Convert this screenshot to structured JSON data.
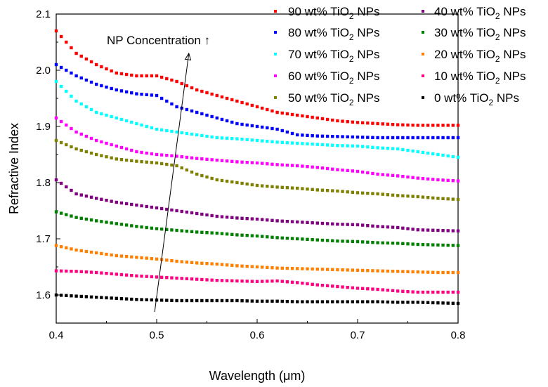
{
  "chart_data": {
    "type": "scatter",
    "xlabel": "Wavelength (μm)",
    "ylabel": "Refractive Index",
    "xlim": [
      0.4,
      0.8
    ],
    "ylim": [
      1.55,
      2.1
    ],
    "xticks": [
      "0.4",
      "0.5",
      "0.6",
      "0.7",
      "0.8"
    ],
    "yticks": [
      "1.6",
      "1.7",
      "1.8",
      "1.9",
      "2.0",
      "2.1"
    ],
    "legend_position": "top-right",
    "annotation": {
      "text": "NP Concentration ↑",
      "arrow_from": [
        0.498,
        1.57
      ],
      "arrow_to": [
        0.532,
        2.03
      ]
    },
    "series": [
      {
        "name_prefix": "90 wt% TiO",
        "name_sub": "2",
        "name_suffix": " NPs",
        "color": "#ff0000",
        "x": [
          0.4,
          0.42,
          0.44,
          0.46,
          0.48,
          0.5,
          0.52,
          0.54,
          0.56,
          0.58,
          0.6,
          0.62,
          0.64,
          0.66,
          0.68,
          0.7,
          0.72,
          0.74,
          0.76,
          0.78,
          0.8
        ],
        "y": [
          2.07,
          2.03,
          2.01,
          1.995,
          1.99,
          1.99,
          1.98,
          1.965,
          1.955,
          1.945,
          1.935,
          1.925,
          1.92,
          1.915,
          1.91,
          1.907,
          1.905,
          1.903,
          1.902,
          1.902,
          1.902
        ]
      },
      {
        "name_prefix": "80 wt% TiO",
        "name_sub": "2",
        "name_suffix": " NPs",
        "color": "#0000ff",
        "x": [
          0.4,
          0.42,
          0.44,
          0.46,
          0.48,
          0.5,
          0.52,
          0.54,
          0.56,
          0.58,
          0.6,
          0.62,
          0.64,
          0.66,
          0.68,
          0.7,
          0.72,
          0.74,
          0.76,
          0.78,
          0.8
        ],
        "y": [
          2.01,
          1.99,
          1.975,
          1.965,
          1.958,
          1.955,
          1.935,
          1.925,
          1.915,
          1.905,
          1.9,
          1.895,
          1.885,
          1.883,
          1.882,
          1.881,
          1.88,
          1.88,
          1.88,
          1.88,
          1.88
        ]
      },
      {
        "name_prefix": "70 wt% TiO",
        "name_sub": "2",
        "name_suffix": " NPs",
        "color": "#00ffff",
        "x": [
          0.4,
          0.42,
          0.44,
          0.46,
          0.48,
          0.5,
          0.52,
          0.54,
          0.56,
          0.58,
          0.6,
          0.62,
          0.64,
          0.66,
          0.68,
          0.7,
          0.72,
          0.74,
          0.76,
          0.78,
          0.8
        ],
        "y": [
          1.98,
          1.945,
          1.925,
          1.915,
          1.905,
          1.895,
          1.89,
          1.885,
          1.88,
          1.878,
          1.875,
          1.872,
          1.87,
          1.868,
          1.866,
          1.865,
          1.862,
          1.86,
          1.855,
          1.85,
          1.845
        ]
      },
      {
        "name_prefix": "60 wt% TiO",
        "name_sub": "2",
        "name_suffix": " NPs",
        "color": "#ff00ff",
        "x": [
          0.4,
          0.42,
          0.44,
          0.46,
          0.48,
          0.5,
          0.52,
          0.54,
          0.56,
          0.58,
          0.6,
          0.62,
          0.64,
          0.66,
          0.68,
          0.7,
          0.72,
          0.74,
          0.76,
          0.78,
          0.8
        ],
        "y": [
          1.915,
          1.89,
          1.875,
          1.865,
          1.855,
          1.85,
          1.847,
          1.843,
          1.84,
          1.837,
          1.835,
          1.832,
          1.83,
          1.827,
          1.823,
          1.82,
          1.815,
          1.812,
          1.808,
          1.805,
          1.803
        ]
      },
      {
        "name_prefix": "50 wt% TiO",
        "name_sub": "2",
        "name_suffix": " NPs",
        "color": "#808000",
        "x": [
          0.4,
          0.42,
          0.44,
          0.46,
          0.48,
          0.5,
          0.52,
          0.54,
          0.56,
          0.58,
          0.6,
          0.62,
          0.64,
          0.66,
          0.68,
          0.7,
          0.72,
          0.74,
          0.76,
          0.78,
          0.8
        ],
        "y": [
          1.875,
          1.86,
          1.85,
          1.842,
          1.838,
          1.835,
          1.83,
          1.815,
          1.805,
          1.8,
          1.795,
          1.792,
          1.79,
          1.787,
          1.785,
          1.782,
          1.78,
          1.777,
          1.775,
          1.772,
          1.77
        ]
      },
      {
        "name_prefix": "40 wt% TiO",
        "name_sub": "2",
        "name_suffix": " NPs",
        "color": "#800080",
        "x": [
          0.4,
          0.42,
          0.44,
          0.46,
          0.48,
          0.5,
          0.52,
          0.54,
          0.56,
          0.58,
          0.6,
          0.62,
          0.64,
          0.66,
          0.68,
          0.7,
          0.72,
          0.74,
          0.76,
          0.78,
          0.8
        ],
        "y": [
          1.805,
          1.78,
          1.772,
          1.765,
          1.76,
          1.755,
          1.75,
          1.745,
          1.74,
          1.737,
          1.735,
          1.732,
          1.73,
          1.728,
          1.726,
          1.725,
          1.722,
          1.72,
          1.716,
          1.715,
          1.714
        ]
      },
      {
        "name_prefix": "30 wt% TiO",
        "name_sub": "2",
        "name_suffix": " NPs",
        "color": "#008000",
        "x": [
          0.4,
          0.42,
          0.44,
          0.46,
          0.48,
          0.5,
          0.52,
          0.54,
          0.56,
          0.58,
          0.6,
          0.62,
          0.64,
          0.66,
          0.68,
          0.7,
          0.72,
          0.74,
          0.76,
          0.78,
          0.8
        ],
        "y": [
          1.748,
          1.738,
          1.732,
          1.727,
          1.722,
          1.718,
          1.715,
          1.712,
          1.71,
          1.707,
          1.705,
          1.702,
          1.7,
          1.698,
          1.696,
          1.695,
          1.693,
          1.692,
          1.69,
          1.689,
          1.688
        ]
      },
      {
        "name_prefix": "20 wt% TiO",
        "name_sub": "2",
        "name_suffix": " NPs",
        "color": "#ff8000",
        "x": [
          0.4,
          0.42,
          0.44,
          0.46,
          0.48,
          0.5,
          0.52,
          0.54,
          0.56,
          0.58,
          0.6,
          0.62,
          0.64,
          0.66,
          0.68,
          0.7,
          0.72,
          0.74,
          0.76,
          0.78,
          0.8
        ],
        "y": [
          1.688,
          1.68,
          1.675,
          1.67,
          1.667,
          1.664,
          1.66,
          1.657,
          1.655,
          1.652,
          1.65,
          1.648,
          1.647,
          1.646,
          1.645,
          1.644,
          1.643,
          1.642,
          1.641,
          1.64,
          1.64
        ]
      },
      {
        "name_prefix": "10 wt% TiO",
        "name_sub": "2",
        "name_suffix": " NPs",
        "color": "#ff0080",
        "x": [
          0.4,
          0.42,
          0.44,
          0.46,
          0.48,
          0.5,
          0.52,
          0.54,
          0.56,
          0.58,
          0.6,
          0.62,
          0.64,
          0.66,
          0.68,
          0.7,
          0.72,
          0.74,
          0.76,
          0.78,
          0.8
        ],
        "y": [
          1.643,
          1.642,
          1.64,
          1.637,
          1.634,
          1.632,
          1.63,
          1.628,
          1.626,
          1.625,
          1.624,
          1.625,
          1.622,
          1.618,
          1.615,
          1.612,
          1.61,
          1.607,
          1.605,
          1.605,
          1.605
        ]
      },
      {
        "name_prefix": "0 wt% TiO",
        "name_sub": "2",
        "name_suffix": " NPs",
        "color": "#000000",
        "x": [
          0.4,
          0.42,
          0.44,
          0.46,
          0.48,
          0.5,
          0.52,
          0.54,
          0.56,
          0.58,
          0.6,
          0.62,
          0.64,
          0.66,
          0.68,
          0.7,
          0.72,
          0.74,
          0.76,
          0.78,
          0.8
        ],
        "y": [
          1.6,
          1.598,
          1.596,
          1.594,
          1.592,
          1.591,
          1.59,
          1.59,
          1.59,
          1.59,
          1.589,
          1.589,
          1.588,
          1.588,
          1.588,
          1.588,
          1.588,
          1.587,
          1.587,
          1.586,
          1.585
        ]
      }
    ]
  }
}
